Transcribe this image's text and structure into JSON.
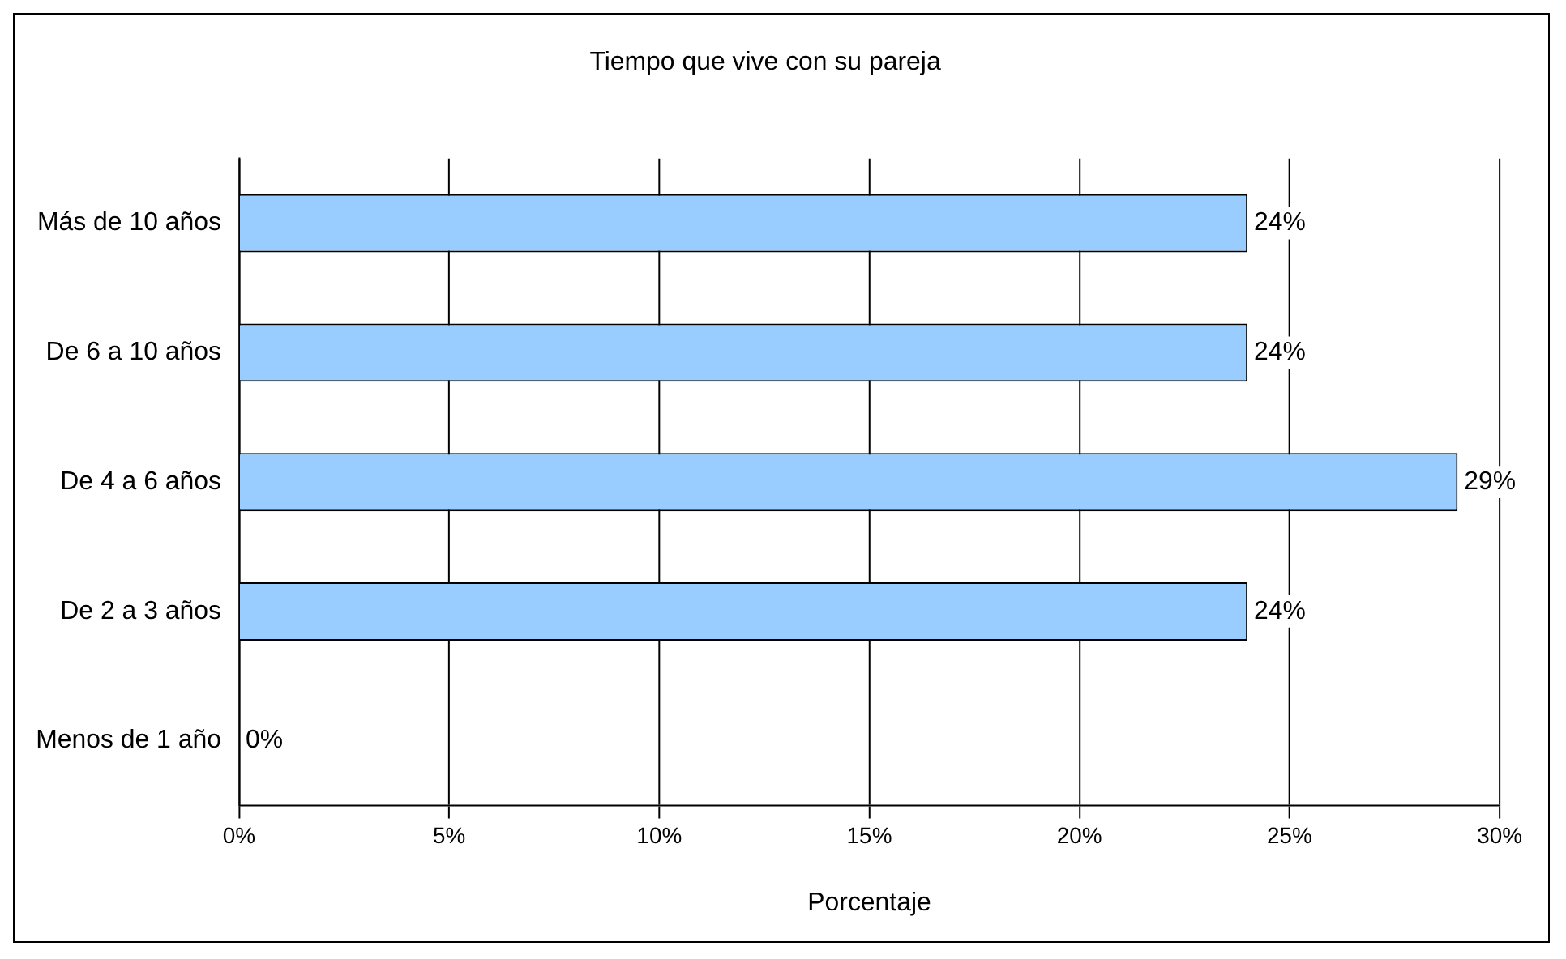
{
  "chart_data": {
    "type": "bar",
    "orientation": "horizontal",
    "title": "Tiempo que vive con su pareja",
    "xlabel": "Porcentaje",
    "categories": [
      "Más de 10 años",
      "De 6 a 10 años",
      "De 4 a 6 años",
      "De 2 a 3 años",
      "Menos de 1 año"
    ],
    "values": [
      24,
      24,
      29,
      24,
      0
    ],
    "value_labels": [
      "24%",
      "24%",
      "29%",
      "24%",
      "0%"
    ],
    "color": "#99ccff",
    "xlim": [
      0,
      30
    ],
    "xticks": [
      {
        "value": 0,
        "label": "0%"
      },
      {
        "value": 5,
        "label": "5%"
      },
      {
        "value": 10,
        "label": "10%"
      },
      {
        "value": 15,
        "label": "15%"
      },
      {
        "value": 20,
        "label": "20%"
      },
      {
        "value": 25,
        "label": "25%"
      },
      {
        "value": 30,
        "label": "30%"
      }
    ],
    "grid": "x",
    "legend": false
  }
}
